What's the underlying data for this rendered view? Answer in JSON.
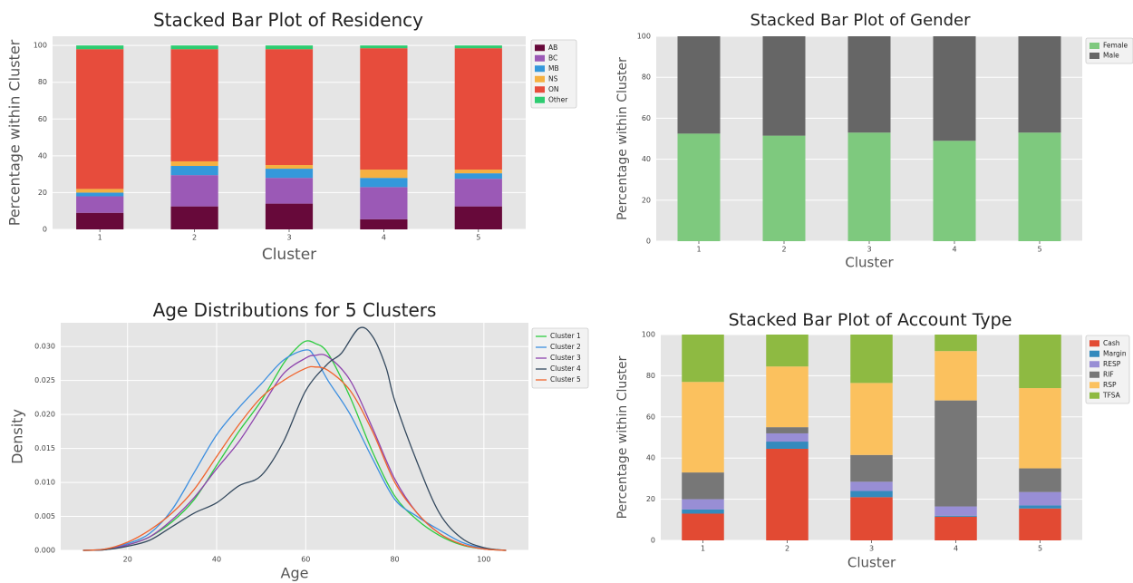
{
  "chart_data": [
    {
      "type": "bar",
      "stacked": true,
      "title": "Stacked Bar Plot of Residency",
      "xlabel": "Cluster",
      "ylabel": "Percentage within Cluster",
      "categories": [
        "1",
        "2",
        "3",
        "4",
        "5"
      ],
      "ylim": [
        0,
        105
      ],
      "yticks": [
        0,
        20,
        40,
        60,
        80,
        100
      ],
      "grid": true,
      "legend": "outside-right",
      "series": [
        {
          "name": "AB",
          "color": "#67093a",
          "values": [
            9,
            12.5,
            14,
            5.5,
            12.5
          ]
        },
        {
          "name": "BC",
          "color": "#9b59b6",
          "values": [
            9,
            17,
            14,
            17.5,
            15
          ]
        },
        {
          "name": "MB",
          "color": "#3498db",
          "values": [
            2,
            5,
            5,
            5,
            3
          ]
        },
        {
          "name": "NS",
          "color": "#f5b041",
          "values": [
            2,
            2.5,
            2,
            4.5,
            2
          ]
        },
        {
          "name": "ON",
          "color": "#e74c3c",
          "values": [
            76,
            61,
            63,
            66,
            66
          ]
        },
        {
          "name": "Other",
          "color": "#2ecc71",
          "values": [
            2,
            2,
            2,
            1.5,
            1.5
          ]
        }
      ]
    },
    {
      "type": "bar",
      "stacked": true,
      "title": "Stacked Bar Plot of Gender",
      "xlabel": "Cluster",
      "ylabel": "Percentage within Cluster",
      "categories": [
        "1",
        "2",
        "3",
        "4",
        "5"
      ],
      "ylim": [
        0,
        100
      ],
      "yticks": [
        0,
        20,
        40,
        60,
        80,
        100
      ],
      "grid": true,
      "legend": "outside-right",
      "series": [
        {
          "name": "Female",
          "color": "#7ec97e",
          "values": [
            52.5,
            51.5,
            53,
            49,
            53
          ]
        },
        {
          "name": "Male",
          "color": "#666666",
          "values": [
            47.5,
            48.5,
            47,
            51,
            47
          ]
        }
      ]
    },
    {
      "type": "line",
      "title": "Age Distributions for 5 Clusters",
      "xlabel": "Age",
      "ylabel": "Density",
      "xlim": [
        5,
        110
      ],
      "ylim": [
        0,
        0.0335
      ],
      "xticks": [
        20,
        40,
        60,
        80,
        100
      ],
      "yticks": [
        0.0,
        0.005,
        0.01,
        0.015,
        0.02,
        0.025,
        0.03
      ],
      "ytick_labels": [
        "0.000",
        "0.005",
        "0.010",
        "0.015",
        "0.020",
        "0.025",
        "0.030"
      ],
      "grid": true,
      "legend": "outside-right",
      "series": [
        {
          "name": "Cluster 1",
          "color": "#2ecc40",
          "x": [
            10,
            15,
            20,
            25,
            30,
            35,
            40,
            45,
            50,
            55,
            58,
            60,
            62,
            65,
            70,
            75,
            80,
            85,
            90,
            95,
            100,
            105
          ],
          "y": [
            0,
            0.0001,
            0.0008,
            0.002,
            0.0042,
            0.0075,
            0.0125,
            0.0175,
            0.022,
            0.0275,
            0.0298,
            0.0308,
            0.0305,
            0.029,
            0.0225,
            0.0145,
            0.008,
            0.0045,
            0.0022,
            0.0008,
            0.0002,
            0
          ]
        },
        {
          "name": "Cluster 2",
          "color": "#3d8fe0",
          "x": [
            10,
            15,
            20,
            25,
            30,
            35,
            40,
            45,
            50,
            55,
            60,
            62,
            65,
            70,
            75,
            80,
            85,
            90,
            95,
            100,
            105
          ],
          "y": [
            0,
            0.0002,
            0.001,
            0.0025,
            0.006,
            0.0115,
            0.017,
            0.021,
            0.0245,
            0.028,
            0.0295,
            0.0285,
            0.025,
            0.02,
            0.0135,
            0.0075,
            0.005,
            0.003,
            0.0012,
            0.0003,
            0
          ]
        },
        {
          "name": "Cluster 3",
          "color": "#8e44ad",
          "x": [
            10,
            15,
            20,
            25,
            30,
            35,
            40,
            45,
            50,
            55,
            60,
            62,
            65,
            70,
            75,
            80,
            85,
            90,
            95,
            100,
            105
          ],
          "y": [
            0,
            0.0001,
            0.0008,
            0.002,
            0.0045,
            0.0078,
            0.012,
            0.016,
            0.021,
            0.026,
            0.0283,
            0.0287,
            0.0285,
            0.025,
            0.018,
            0.0105,
            0.0055,
            0.0025,
            0.0009,
            0.0002,
            0
          ]
        },
        {
          "name": "Cluster 4",
          "color": "#34495e",
          "x": [
            10,
            15,
            20,
            25,
            30,
            35,
            40,
            45,
            50,
            55,
            60,
            65,
            68,
            72,
            75,
            78,
            80,
            85,
            90,
            95,
            100,
            105
          ],
          "y": [
            0,
            0.0001,
            0.0006,
            0.0015,
            0.0035,
            0.0055,
            0.007,
            0.0095,
            0.011,
            0.016,
            0.0235,
            0.0275,
            0.029,
            0.0327,
            0.0315,
            0.027,
            0.022,
            0.013,
            0.0055,
            0.0018,
            0.0004,
            0
          ]
        },
        {
          "name": "Cluster 5",
          "color": "#f0642d",
          "x": [
            10,
            15,
            20,
            25,
            30,
            35,
            40,
            45,
            50,
            55,
            60,
            62,
            65,
            70,
            75,
            80,
            85,
            90,
            95,
            100,
            105
          ],
          "y": [
            0,
            0.0002,
            0.0012,
            0.003,
            0.0055,
            0.009,
            0.0138,
            0.0185,
            0.0225,
            0.025,
            0.0268,
            0.027,
            0.0265,
            0.0235,
            0.0175,
            0.01,
            0.0055,
            0.0025,
            0.0009,
            0.0002,
            0
          ]
        }
      ]
    },
    {
      "type": "bar",
      "stacked": true,
      "title": "Stacked Bar Plot of Account Type",
      "xlabel": "Cluster",
      "ylabel": "Percentage within Cluster",
      "categories": [
        "1",
        "2",
        "3",
        "4",
        "5"
      ],
      "ylim": [
        0,
        100
      ],
      "yticks": [
        0,
        20,
        40,
        60,
        80,
        100
      ],
      "grid": true,
      "legend": "outside-right",
      "series": [
        {
          "name": "Cash",
          "color": "#e24a33",
          "values": [
            13,
            44.5,
            21,
            11.5,
            15.5
          ]
        },
        {
          "name": "Margin",
          "color": "#348abd",
          "values": [
            2,
            3.5,
            3,
            0.5,
            1.5
          ]
        },
        {
          "name": "RESP",
          "color": "#988ed5",
          "values": [
            5,
            4,
            4.5,
            4.5,
            6.5
          ]
        },
        {
          "name": "RIF",
          "color": "#777777",
          "values": [
            13,
            3,
            13,
            51.5,
            11.5
          ]
        },
        {
          "name": "RSP",
          "color": "#fbc15e",
          "values": [
            44,
            29.5,
            35,
            24,
            39
          ]
        },
        {
          "name": "TFSA",
          "color": "#8eba42",
          "values": [
            23,
            15.5,
            23.5,
            8,
            26
          ]
        }
      ]
    }
  ]
}
